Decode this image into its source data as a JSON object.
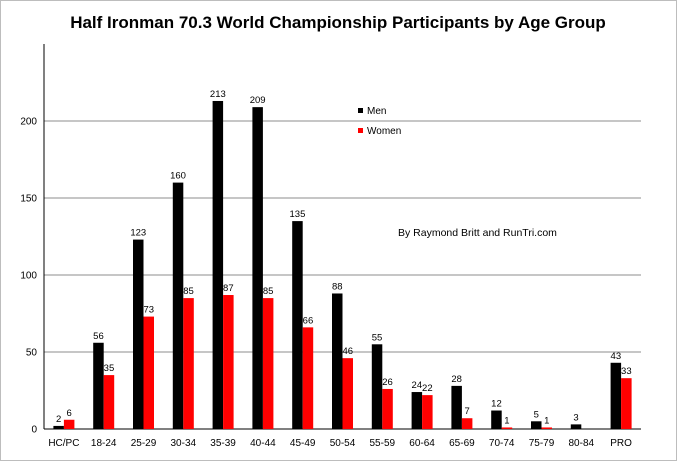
{
  "chart_data": {
    "type": "bar",
    "title": "Half Ironman 70.3 World Championship Participants by Age Group",
    "xlabel": "",
    "ylabel": "",
    "ylim": [
      0,
      250
    ],
    "yticks": [
      0,
      50,
      100,
      150,
      200
    ],
    "categories": [
      "HC/PC",
      "18-24",
      "25-29",
      "30-34",
      "35-39",
      "40-44",
      "45-49",
      "50-54",
      "55-59",
      "60-64",
      "65-69",
      "70-74",
      "75-79",
      "80-84",
      "PRO"
    ],
    "series": [
      {
        "name": "Men",
        "color": "#000000",
        "values": [
          2,
          56,
          123,
          160,
          213,
          209,
          135,
          88,
          55,
          24,
          28,
          12,
          5,
          3,
          43
        ],
        "labels": [
          "2",
          "56",
          "123",
          "160",
          "213",
          "209",
          "135",
          "88",
          "55",
          "24",
          "28",
          "12",
          "5",
          "3",
          "43"
        ]
      },
      {
        "name": "Women",
        "color": "#ff0000",
        "values": [
          6,
          35,
          73,
          85,
          87,
          85,
          66,
          46,
          26,
          22,
          7,
          1,
          1,
          0,
          33
        ],
        "labels": [
          "6",
          "35",
          "73",
          "85",
          "87",
          "85",
          "66",
          "46",
          "26",
          "22",
          "7",
          "1",
          "1",
          "",
          "33"
        ]
      }
    ],
    "grid": true,
    "legend_position": "upper-middle",
    "annotation": "By Raymond Britt and RunTri.com"
  }
}
